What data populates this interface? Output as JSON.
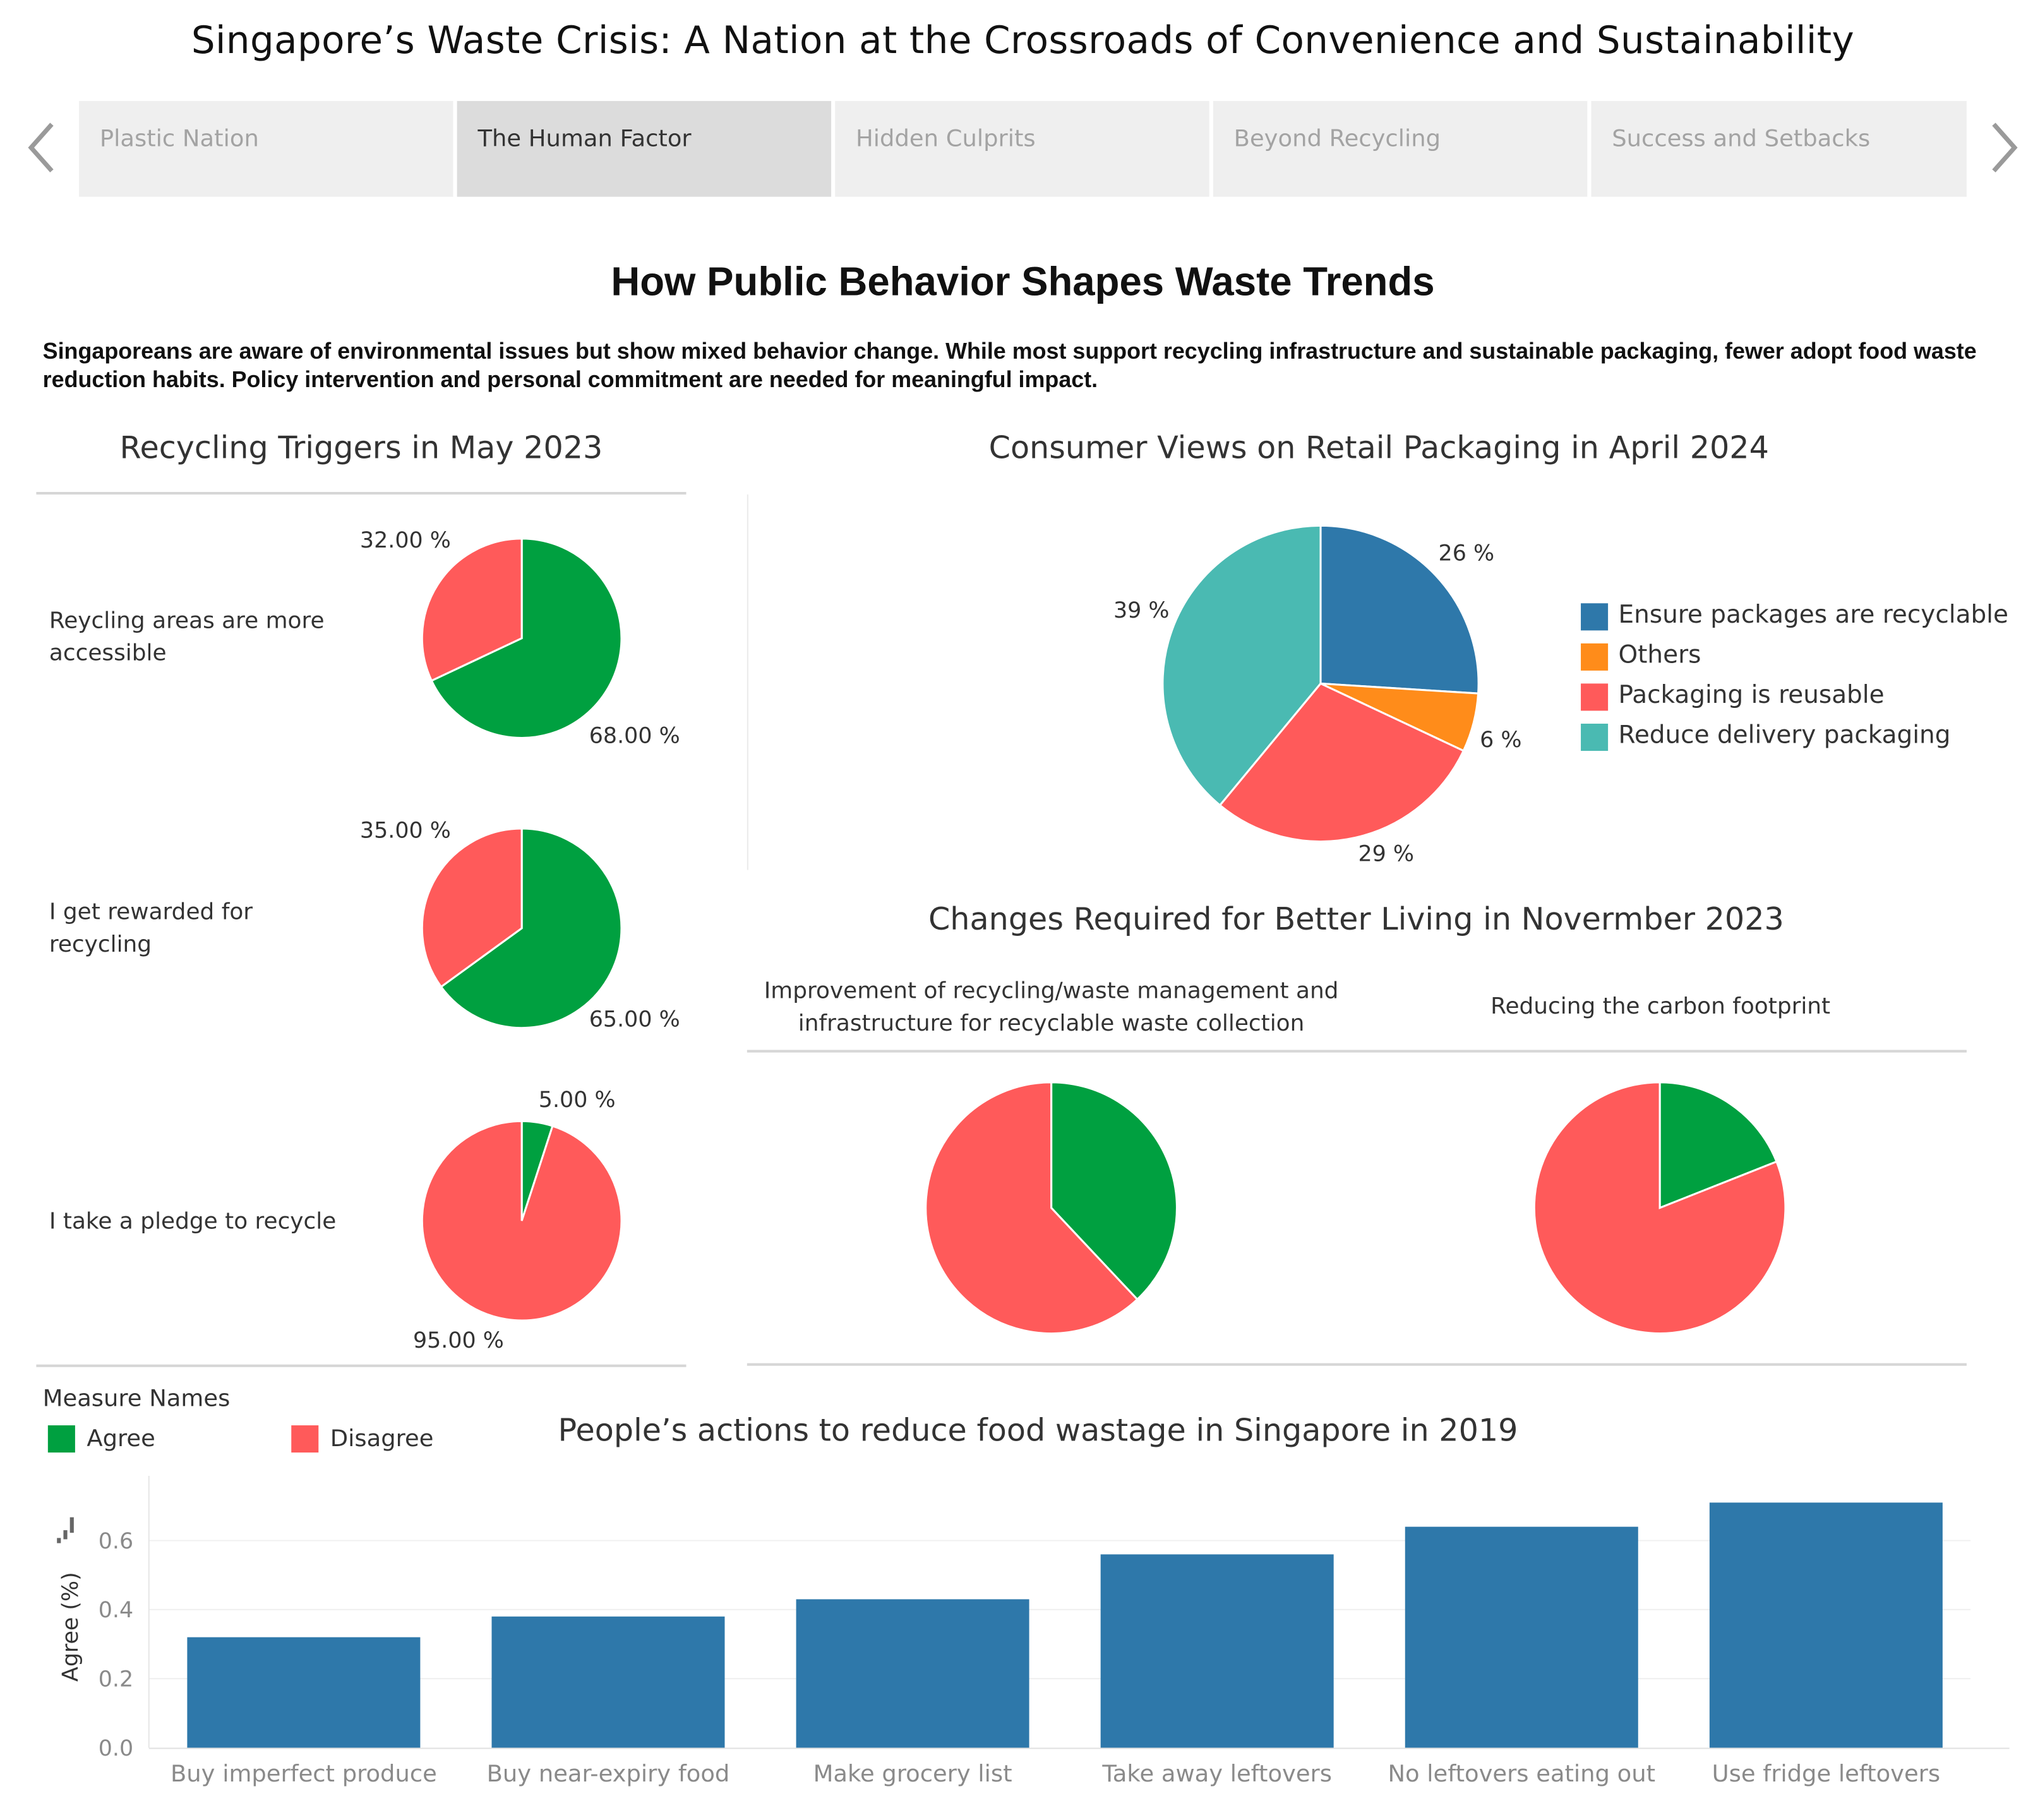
{
  "title": "Singapore’s Waste Crisis: A Nation at the Crossroads of Convenience and Sustainability",
  "tabs": [
    {
      "label": "Plastic Nation",
      "active": false
    },
    {
      "label": "The Human Factor",
      "active": true
    },
    {
      "label": "Hidden Culprits",
      "active": false
    },
    {
      "label": "Beyond Recycling",
      "active": false
    },
    {
      "label": "Success and Setbacks",
      "active": false
    }
  ],
  "heading": "How Public Behavior Shapes Waste Trends",
  "description": "Singaporeans are aware of environmental issues but show mixed behavior change. While most support recycling infrastructure and sustainable packaging, fewer adopt food waste reduction habits. Policy intervention and personal commitment are needed for meaningful impact.",
  "colors": {
    "agree": "#00A040",
    "disagree": "#FF5A5A",
    "blue": "#2E78AA",
    "orange": "#FF8C1A",
    "teal": "#4ABAB2"
  },
  "legend": {
    "title": "Measure Names",
    "agree": "Agree",
    "disagree": "Disagree"
  },
  "chart_data": [
    {
      "type": "pie",
      "title": "Recycling Triggers in May 2023",
      "series": [
        {
          "name": "Reycling areas are more accessible",
          "agree": 68,
          "disagree": 32,
          "agree_label": "68.00 %",
          "disagree_label": "32.00 %"
        },
        {
          "name": "I get rewarded for recycling",
          "agree": 65,
          "disagree": 35,
          "agree_label": "65.00 %",
          "disagree_label": "35.00 %"
        },
        {
          "name": "I take a pledge to recycle",
          "agree": 5,
          "disagree": 95,
          "agree_label": "5.00 %",
          "disagree_label": "95.00 %"
        }
      ]
    },
    {
      "type": "pie",
      "title": "Consumer Views on Retail Packaging in April 2024",
      "slices": [
        {
          "name": "Ensure packages are recyclable",
          "value": 26,
          "label": "26 %",
          "color": "#2E78AA"
        },
        {
          "name": "Others",
          "value": 6,
          "label": "6 %",
          "color": "#FF8C1A"
        },
        {
          "name": "Packaging is reusable",
          "value": 29,
          "label": "29 %",
          "color": "#FF5A5A"
        },
        {
          "name": "Reduce delivery packaging",
          "value": 39,
          "label": "39 %",
          "color": "#4ABAB2"
        }
      ]
    },
    {
      "type": "pie",
      "title": "Changes Required for Better Living in Novermber 2023",
      "series": [
        {
          "name": "Improvement of recycling/waste management and infrastructure for recyclable waste collection",
          "agree": 38,
          "disagree": 62
        },
        {
          "name": "Reducing the carbon footprint",
          "agree": 19,
          "disagree": 81
        }
      ]
    },
    {
      "type": "bar",
      "title": "People’s actions to reduce food wastage in Singapore in 2019",
      "categories": [
        "Buy imperfect produce",
        "Buy near-expiry food",
        "Make grocery list",
        "Take away leftovers",
        "No leftovers eating out",
        "Use fridge leftovers"
      ],
      "values": [
        0.32,
        0.38,
        0.43,
        0.56,
        0.64,
        0.71
      ],
      "ylabel": "Agree (%)",
      "ylim": [
        0,
        0.75
      ],
      "yticks": [
        "0.0",
        "0.2",
        "0.4",
        "0.6"
      ]
    }
  ]
}
